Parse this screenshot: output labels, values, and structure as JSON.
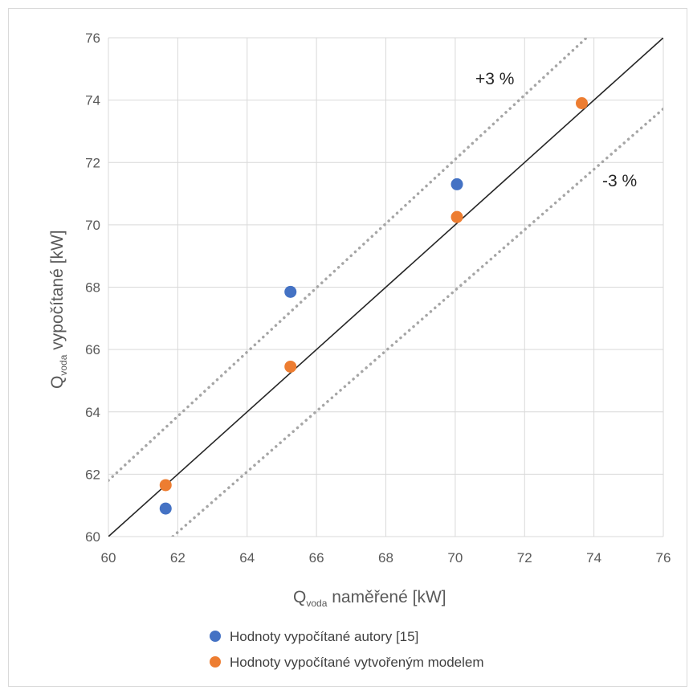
{
  "chart_data": {
    "type": "scatter",
    "xlabel": {
      "main": "Q",
      "sub": "voda",
      "rest": " naměřené [kW]"
    },
    "ylabel": {
      "main": "Q",
      "sub": "voda",
      "rest": " vypočítané [kW]"
    },
    "xlim": [
      60,
      76
    ],
    "ylim": [
      60,
      76
    ],
    "xticks": [
      "60",
      "62",
      "64",
      "66",
      "68",
      "70",
      "72",
      "74",
      "76"
    ],
    "yticks": [
      "60",
      "62",
      "64",
      "66",
      "68",
      "70",
      "72",
      "74",
      "76"
    ],
    "grid": true,
    "legend_position": "bottom",
    "series": [
      {
        "name": "Hodnoty vypočítané autory [15]",
        "color": "#4472C4",
        "x": [
          61.65,
          65.25,
          70.05
        ],
        "y": [
          60.9,
          67.85,
          71.3
        ]
      },
      {
        "name": "Hodnoty vypočítané vytvořeným modelem",
        "color": "#ED7D31",
        "x": [
          61.65,
          65.25,
          70.05,
          73.65
        ],
        "y": [
          61.65,
          65.45,
          70.25,
          73.9
        ]
      }
    ],
    "reference_lines": {
      "identity": {
        "color": "#262626",
        "style": "solid"
      },
      "plus": {
        "label": "+3 %",
        "factor": 1.03,
        "color": "#a6a6a6",
        "style": "dotted"
      },
      "minus": {
        "label": "-3 %",
        "factor": 0.97,
        "color": "#a6a6a6",
        "style": "dotted"
      }
    }
  }
}
